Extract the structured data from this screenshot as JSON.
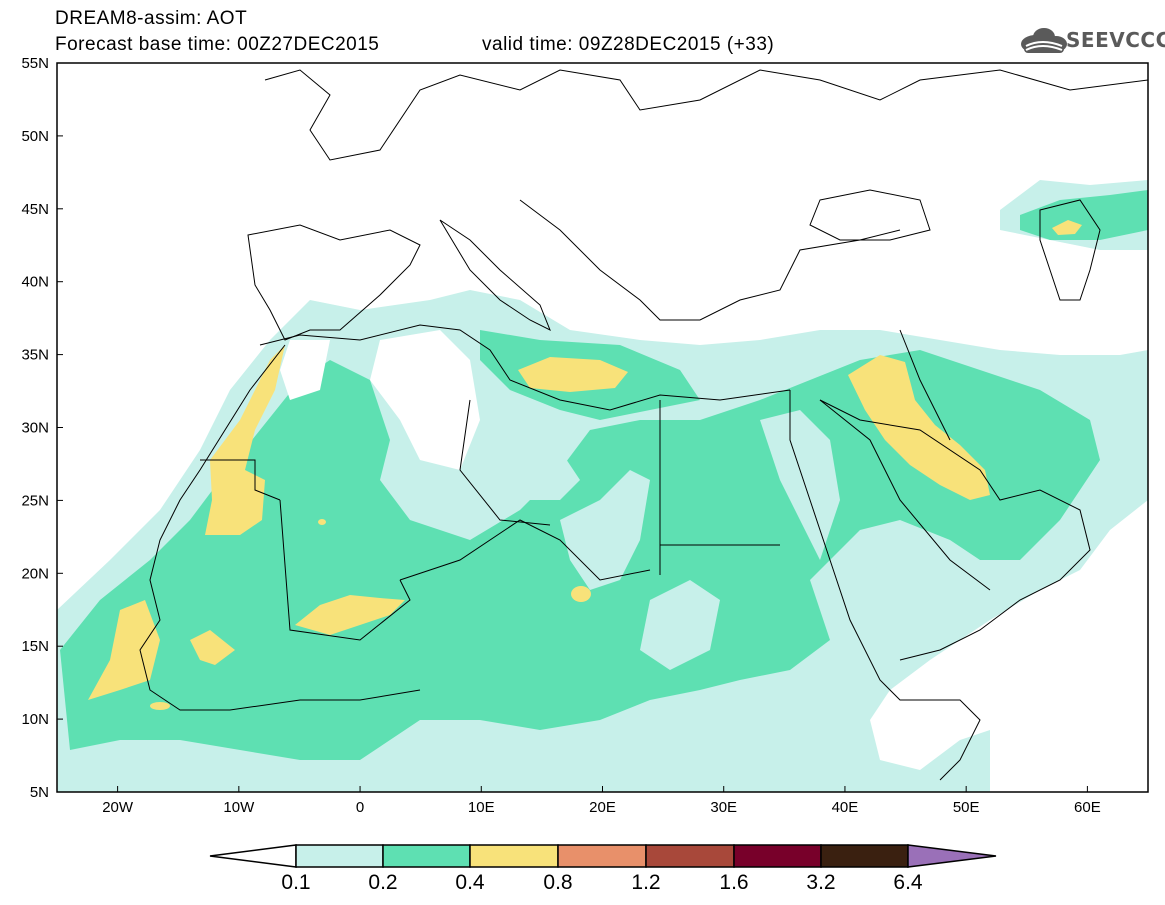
{
  "header": {
    "title_line1": "DREAM8-assim: AOT",
    "title_line2": "Forecast base time: 00Z27DEC2015",
    "valid_time": "valid time: 09Z28DEC2015 (+33)",
    "logo_text": "SEEVCCC"
  },
  "map": {
    "lat_labels": [
      "55N",
      "50N",
      "45N",
      "40N",
      "35N",
      "30N",
      "25N",
      "20N",
      "15N",
      "10N",
      "5N"
    ],
    "lon_labels": [
      "20W",
      "10W",
      "0",
      "10E",
      "20E",
      "30E",
      "40E",
      "50E",
      "60E"
    ],
    "lat_range": [
      5,
      55
    ],
    "lon_range": [
      -25,
      65
    ]
  },
  "colorbar": {
    "labels": [
      "0.1",
      "0.2",
      "0.4",
      "0.8",
      "1.2",
      "1.6",
      "3.2",
      "6.4"
    ],
    "colors": {
      "under": "#ffffff",
      "c1": "#c7f0ea",
      "c2": "#5ee0b2",
      "c3": "#f8e27a",
      "c4": "#e8906a",
      "c5": "#a8483a",
      "c6": "#78002a",
      "c7": "#3a2010",
      "over": "#9a70b8"
    }
  }
}
